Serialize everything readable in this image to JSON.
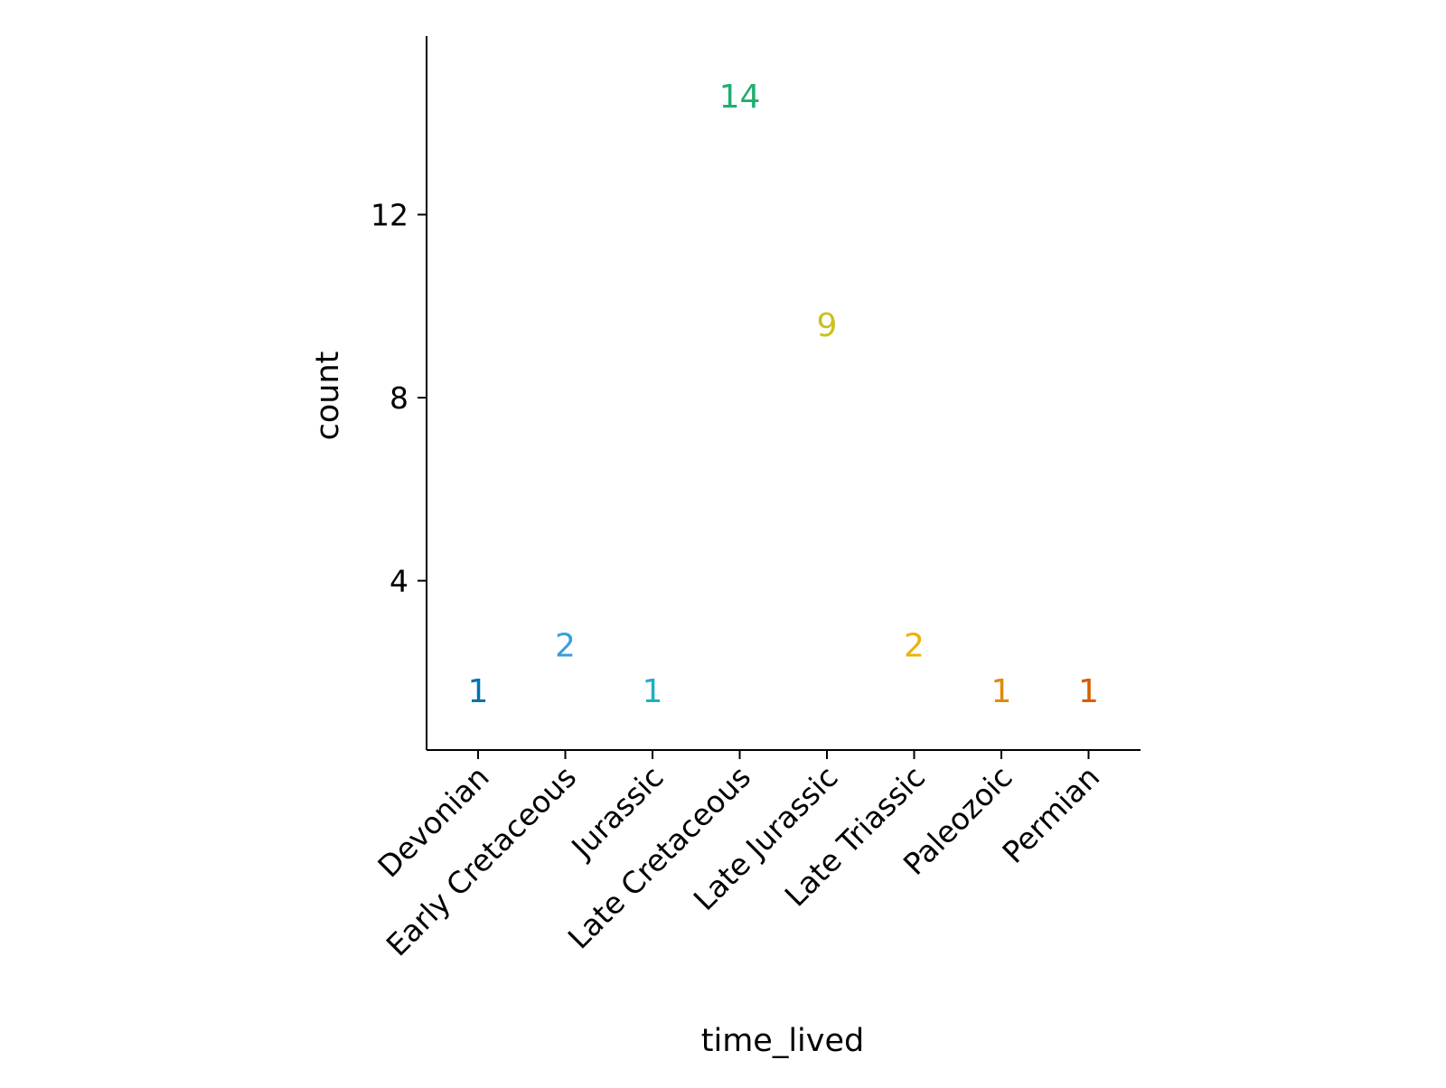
{
  "chart_data": {
    "type": "scatter",
    "mark": "text",
    "xlabel": "time_lived",
    "ylabel": "count",
    "categories": [
      "Devonian",
      "Early Cretaceous",
      "Jurassic",
      "Late Cretaceous",
      "Late Jurassic",
      "Late Triassic",
      "Paleozoic",
      "Permian"
    ],
    "values": [
      1,
      2,
      1,
      14,
      9,
      2,
      1,
      1
    ],
    "point_labels": [
      "1",
      "2",
      "1",
      "14",
      "9",
      "2",
      "1",
      "1"
    ],
    "colors": [
      "#0072B2",
      "#3A9FD9",
      "#1FB0C4",
      "#1FAE6E",
      "#C9C21C",
      "#EBB10A",
      "#E08A0B",
      "#D55E00"
    ],
    "y_ticks": [
      4,
      8,
      12
    ],
    "y_tick_labels": [
      "4",
      "8",
      "12"
    ],
    "ylim": [
      0.3,
      15.9
    ],
    "grid": false,
    "legend": "none"
  }
}
